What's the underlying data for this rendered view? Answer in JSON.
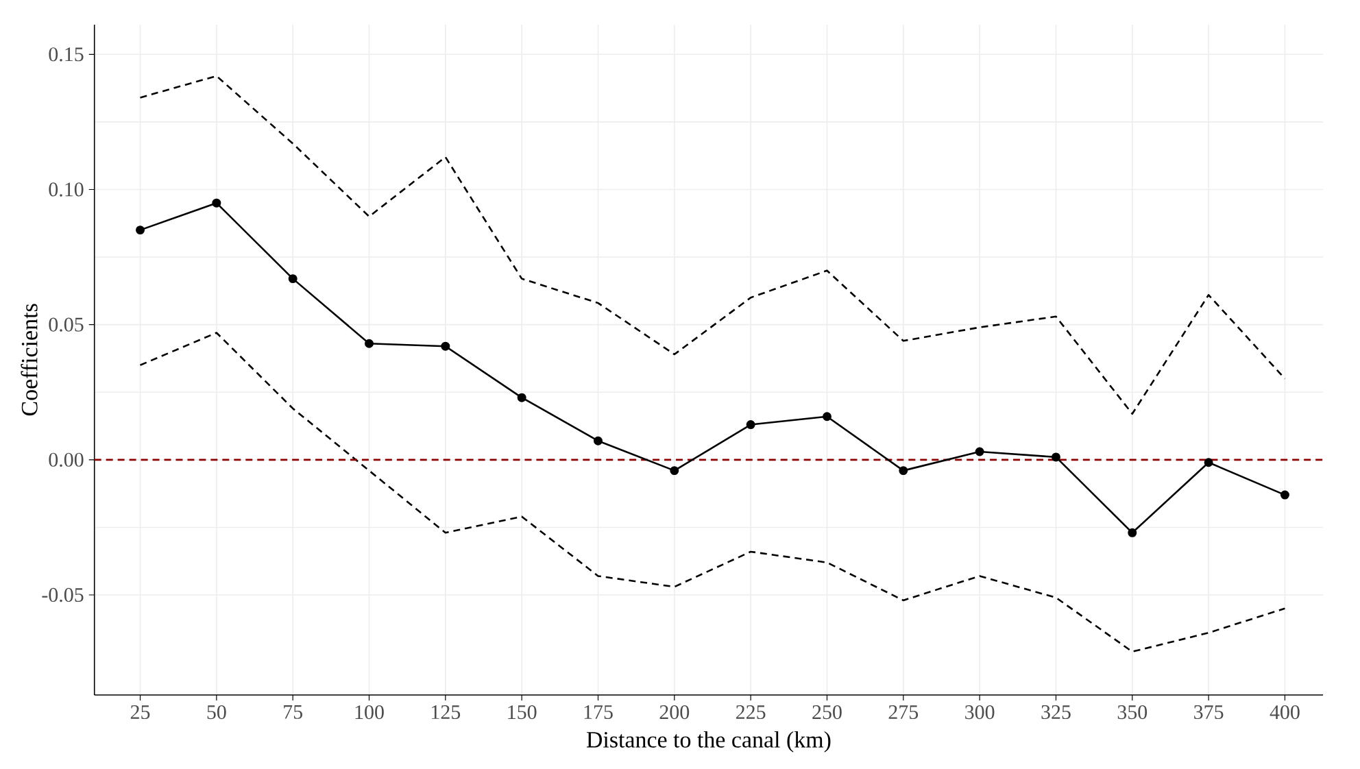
{
  "chart_data": {
    "type": "line",
    "xlabel": "Distance to the canal (km)",
    "ylabel": "Coefficients",
    "x": [
      25,
      50,
      75,
      100,
      125,
      150,
      175,
      200,
      225,
      250,
      275,
      300,
      325,
      350,
      375,
      400
    ],
    "series": [
      {
        "color": "#000000",
        "marker": "circle",
        "line_style": "solid",
        "values": [
          0.085,
          0.095,
          0.067,
          0.043,
          0.042,
          0.023,
          0.007,
          -0.004,
          0.013,
          0.016,
          -0.004,
          0.003,
          0.001,
          -0.027,
          -0.001,
          -0.013
        ]
      },
      {
        "color": "#000000",
        "marker": "none",
        "line_style": "dashed",
        "values": [
          0.134,
          0.142,
          0.117,
          0.09,
          0.112,
          0.067,
          0.058,
          0.039,
          0.06,
          0.07,
          0.044,
          0.049,
          0.053,
          0.017,
          0.061,
          0.03
        ]
      },
      {
        "color": "#000000",
        "marker": "none",
        "line_style": "dashed",
        "values": [
          0.035,
          0.047,
          0.019,
          -0.004,
          -0.027,
          -0.021,
          -0.043,
          -0.047,
          -0.034,
          -0.038,
          -0.052,
          -0.043,
          -0.051,
          -0.071,
          -0.064,
          -0.055
        ]
      }
    ],
    "xlim": [
      10,
      412.5
    ],
    "ylim": [
      -0.087,
      0.161
    ],
    "xticks": [
      25,
      50,
      75,
      100,
      125,
      150,
      175,
      200,
      225,
      250,
      275,
      300,
      325,
      350,
      375,
      400
    ],
    "yticks": [
      {
        "value": -0.05,
        "label": "-0.05"
      },
      {
        "value": 0,
        "label": "0.00"
      },
      {
        "value": 0.05,
        "label": "0.05"
      },
      {
        "value": 0.1,
        "label": "0.10"
      },
      {
        "value": 0.15,
        "label": "0.15"
      }
    ],
    "grid": true,
    "ref_lines": [
      {
        "axis": "y",
        "value": 0,
        "color": "#8b0000",
        "line_style": "dashed"
      }
    ]
  }
}
